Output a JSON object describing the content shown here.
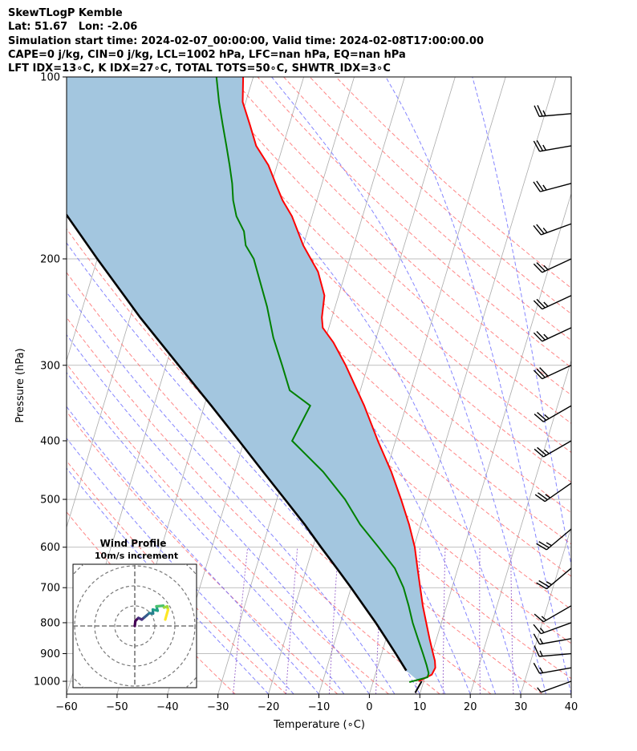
{
  "header": {
    "line1": "SkewTLogP Kemble",
    "line2": "Lat: 51.67   Lon: -2.06",
    "line3": "Simulation start time: 2024-02-07_00:00:00, Valid time: 2024-02-08T17:00:00.00",
    "line4": "CAPE=0 j/kg, CIN=0 j/kg, LCL=1002 hPa, LFC=nan hPa, EQ=nan hPa",
    "line5": "LFT IDX=13∘C, K IDX=27∘C, TOTAL TOTS=50∘C, SHWTR_IDX=3∘C"
  },
  "chart_data": [
    {
      "type": "line",
      "subtype": "skew-t log-p",
      "xlabel": "Temperature (∘C)",
      "ylabel": "Pressure (hPa)",
      "xlim": [
        -60,
        40
      ],
      "ylim": [
        1050,
        100
      ],
      "y_scale": "log",
      "x_ticks": [
        "−60",
        "−50",
        "−40",
        "−30",
        "−20",
        "−10",
        "0",
        "10",
        "20",
        "30",
        "40"
      ],
      "y_ticks": [
        "100",
        "200",
        "300",
        "400",
        "500",
        "600",
        "700",
        "800",
        "900",
        "1000"
      ],
      "grid": true,
      "colors": {
        "temperature": "#ff0000",
        "dewpoint": "#008000",
        "parcel": "#000000",
        "shading": "#a3c6df",
        "dry_adiabats": "#ff6666",
        "moist_adiabats": "#6666ff",
        "mixing_ratio": "#9966cc",
        "isotherms": "#aaaaaa"
      },
      "series": [
        {
          "role": "temperature",
          "points": [
            [
              1000,
              9
            ],
            [
              975,
              11.2
            ],
            [
              950,
              11.5
            ],
            [
              925,
              11
            ],
            [
              900,
              10.2
            ],
            [
              850,
              8.6
            ],
            [
              800,
              7
            ],
            [
              750,
              5.3
            ],
            [
              700,
              3.7
            ],
            [
              650,
              2
            ],
            [
              600,
              0.2
            ],
            [
              550,
              -2.3
            ],
            [
              500,
              -5.4
            ],
            [
              450,
              -9
            ],
            [
              400,
              -13.5
            ],
            [
              350,
              -18.3
            ],
            [
              300,
              -24.4
            ],
            [
              275,
              -28.2
            ],
            [
              260,
              -31.2
            ],
            [
              250,
              -32
            ],
            [
              230,
              -32.8
            ],
            [
              210,
              -35.5
            ],
            [
              190,
              -40
            ],
            [
              170,
              -44
            ],
            [
              160,
              -46.8
            ],
            [
              150,
              -49.2
            ],
            [
              140,
              -51.7
            ],
            [
              130,
              -55.3
            ],
            [
              120,
              -57.8
            ],
            [
              110,
              -60.6
            ],
            [
              100,
              -62
            ]
          ]
        },
        {
          "role": "dewpoint",
          "points": [
            [
              1003,
              7.2
            ],
            [
              985,
              10.5
            ],
            [
              970,
              10.5
            ],
            [
              940,
              9.6
            ],
            [
              900,
              8.2
            ],
            [
              850,
              6.3
            ],
            [
              800,
              4.3
            ],
            [
              750,
              2.5
            ],
            [
              700,
              0.4
            ],
            [
              650,
              -2.5
            ],
            [
              600,
              -7
            ],
            [
              550,
              -12
            ],
            [
              500,
              -16.5
            ],
            [
              450,
              -22.5
            ],
            [
              400,
              -30.5
            ],
            [
              350,
              -29
            ],
            [
              330,
              -34
            ],
            [
              300,
              -37
            ],
            [
              270,
              -40.4
            ],
            [
              240,
              -43.5
            ],
            [
              200,
              -49
            ],
            [
              190,
              -51.4
            ],
            [
              180,
              -52.6
            ],
            [
              170,
              -55
            ],
            [
              160,
              -56.6
            ],
            [
              150,
              -57.8
            ],
            [
              140,
              -59.4
            ],
            [
              130,
              -61.2
            ],
            [
              120,
              -63.2
            ],
            [
              110,
              -65.3
            ],
            [
              100,
              -67.3
            ]
          ]
        },
        {
          "role": "parcel",
          "points": [
            [
              960,
              5.9
            ],
            [
              900,
              2.8
            ],
            [
              850,
              0
            ],
            [
              800,
              -3
            ],
            [
              750,
              -6.4
            ],
            [
              700,
              -10
            ],
            [
              650,
              -14
            ],
            [
              600,
              -18.4
            ],
            [
              550,
              -23
            ],
            [
              500,
              -28.4
            ],
            [
              450,
              -34.4
            ],
            [
              400,
              -41
            ],
            [
              350,
              -48.6
            ],
            [
              300,
              -57.5
            ],
            [
              250,
              -68
            ],
            [
              200,
              -80
            ],
            [
              150,
              -95
            ],
            [
              120,
              -106
            ],
            [
              100,
              -114
            ]
          ]
        }
      ],
      "shading": "area between parcel and temperature profiles",
      "wind_barbs": [
        {
          "p": 1000,
          "dir": 250,
          "spd": 5
        },
        {
          "p": 950,
          "dir": 260,
          "spd": 15
        },
        {
          "p": 900,
          "dir": 265,
          "spd": 15
        },
        {
          "p": 850,
          "dir": 260,
          "spd": 15
        },
        {
          "p": 800,
          "dir": 250,
          "spd": 15
        },
        {
          "p": 750,
          "dir": 240,
          "spd": 15
        },
        {
          "p": 650,
          "dir": 230,
          "spd": 25
        },
        {
          "p": 560,
          "dir": 230,
          "spd": 25
        },
        {
          "p": 470,
          "dir": 235,
          "spd": 25
        },
        {
          "p": 400,
          "dir": 240,
          "spd": 25
        },
        {
          "p": 350,
          "dir": 240,
          "spd": 25
        },
        {
          "p": 300,
          "dir": 245,
          "spd": 30
        },
        {
          "p": 260,
          "dir": 245,
          "spd": 25
        },
        {
          "p": 230,
          "dir": 245,
          "spd": 25
        },
        {
          "p": 200,
          "dir": 245,
          "spd": 25
        },
        {
          "p": 175,
          "dir": 250,
          "spd": 25
        },
        {
          "p": 150,
          "dir": 255,
          "spd": 25
        },
        {
          "p": 130,
          "dir": 260,
          "spd": 25
        },
        {
          "p": 115,
          "dir": 265,
          "spd": 25
        }
      ]
    },
    {
      "type": "line",
      "subtype": "hodograph",
      "title": "Wind Profile",
      "subtitle": "10m/s increment",
      "colormap": "viridis",
      "points": [
        [
          0,
          0
        ],
        [
          0.3,
          2.5
        ],
        [
          1.8,
          4
        ],
        [
          3.5,
          3.2
        ],
        [
          4.8,
          4.3
        ],
        [
          6,
          5.3
        ],
        [
          7.2,
          6.4
        ],
        [
          9.1,
          6.2
        ],
        [
          9,
          8.2
        ],
        [
          11.4,
          7.6
        ],
        [
          10.8,
          9.8
        ],
        [
          14.2,
          10.1
        ],
        [
          14.6,
          9.2
        ],
        [
          16.2,
          9.8
        ],
        [
          16.6,
          8.1
        ],
        [
          15.2,
          3.2
        ]
      ]
    }
  ]
}
